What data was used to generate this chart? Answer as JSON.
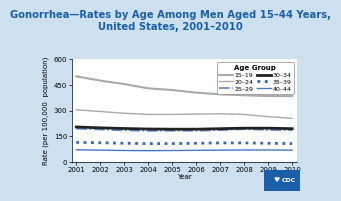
{
  "title": "Gonorrhea—Rates by Age Among Men Aged 15–44 Years,\nUnited States, 2001–2010",
  "xlabel": "Year",
  "ylabel": "Rate (per 100,000  population)",
  "years": [
    2001,
    2002,
    2003,
    2004,
    2005,
    2006,
    2007,
    2008,
    2009,
    2010
  ],
  "series": {
    "15-19": [
      500,
      475,
      455,
      430,
      420,
      405,
      395,
      390,
      385,
      385
    ],
    "20-24": [
      305,
      295,
      285,
      278,
      278,
      280,
      282,
      278,
      265,
      255
    ],
    "25-29": [
      195,
      190,
      185,
      182,
      183,
      183,
      186,
      192,
      188,
      185
    ],
    "30-34": [
      205,
      200,
      196,
      193,
      192,
      192,
      195,
      198,
      198,
      195
    ],
    "35-39": [
      115,
      113,
      110,
      108,
      108,
      110,
      112,
      112,
      110,
      108
    ],
    "40-44": [
      72,
      70,
      68,
      67,
      68,
      69,
      70,
      71,
      71,
      70
    ]
  },
  "line_configs": {
    "15-19": {
      "color": "#aaaaaa",
      "linestyle": "-",
      "linewidth": 1.5,
      "label": "15–19"
    },
    "20-24": {
      "color": "#aaaaaa",
      "linestyle": "-",
      "linewidth": 1.0,
      "label": "20–24"
    },
    "25-29": {
      "color": "#5588cc",
      "linestyle": "-.",
      "linewidth": 1.2,
      "label": "25–29"
    },
    "30-34": {
      "color": "#222222",
      "linestyle": "-",
      "linewidth": 2.0,
      "label": "30–34"
    },
    "35-39": {
      "color": "#3366bb",
      "linestyle": ":",
      "linewidth": 2.0,
      "label": "35–39"
    },
    "40-44": {
      "color": "#4477cc",
      "linestyle": "-",
      "linewidth": 1.0,
      "label": "40–44"
    }
  },
  "ylim": [
    0,
    600
  ],
  "yticks": [
    0,
    150,
    300,
    450,
    600
  ],
  "background_color": "#cde0f0",
  "plot_bg": "#ffffff",
  "title_color": "#1a5fa8",
  "title_fontsize": 7.2,
  "axis_label_fontsize": 5.0,
  "tick_fontsize": 5.0,
  "legend_fontsize": 4.5,
  "legend_title_fontsize": 5.0
}
